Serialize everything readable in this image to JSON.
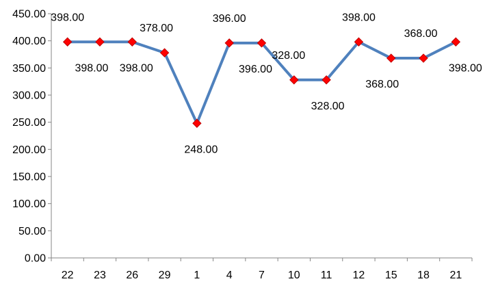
{
  "chart_data": {
    "type": "line",
    "title": "",
    "xlabel": "",
    "ylabel": "",
    "categories": [
      "22",
      "23",
      "26",
      "29",
      "1",
      "4",
      "7",
      "10",
      "11",
      "12",
      "15",
      "18",
      "21"
    ],
    "series": [
      {
        "values": [
          398,
          398,
          398,
          378,
          248,
          396,
          396,
          328,
          328,
          398,
          368,
          368,
          398
        ],
        "value_labels": [
          "398.00",
          "398.00",
          "398.00",
          "378.00",
          "248.00",
          "396.00",
          "396.00",
          "328.00",
          "328.00",
          "398.00",
          "368.00",
          "368.00",
          "398.00"
        ],
        "line_color": "#4F81BD",
        "marker": "diamond",
        "marker_color": "#FF0000"
      }
    ],
    "ylim": [
      0,
      450
    ],
    "yticks": [
      0,
      50,
      100,
      150,
      200,
      250,
      300,
      350,
      400,
      450
    ],
    "ytick_labels": [
      "0.00",
      "50.00",
      "100.00",
      "150.00",
      "200.00",
      "250.00",
      "300.00",
      "350.00",
      "400.00",
      "450.00"
    ],
    "grid": false,
    "legend": "none",
    "axis_color": "#868686"
  }
}
